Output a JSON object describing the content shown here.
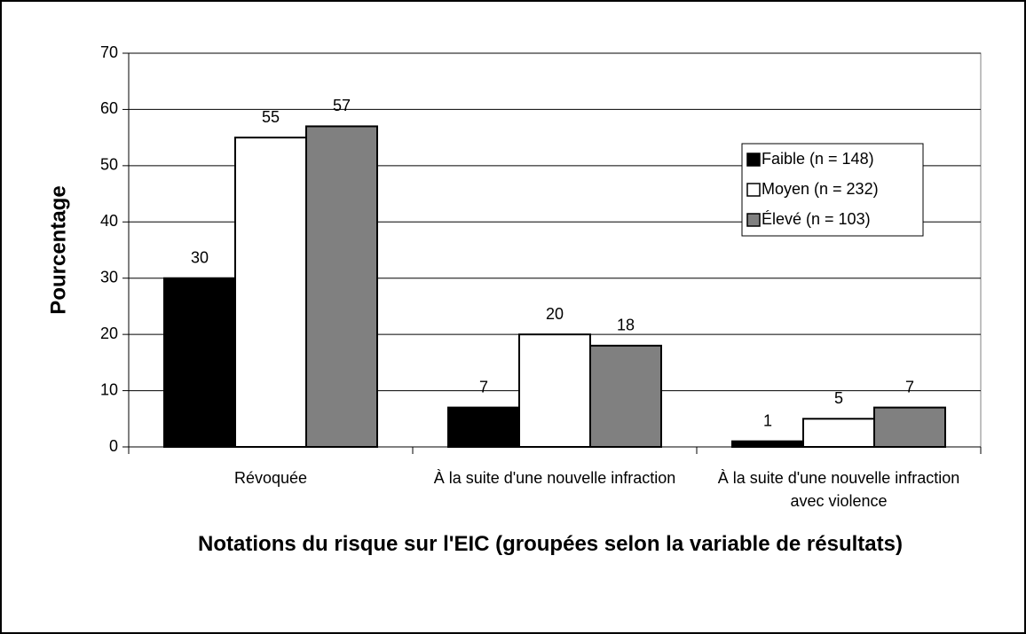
{
  "chart_data": {
    "type": "bar",
    "categories": [
      "Révoquée",
      "À la suite d'une nouvelle infraction",
      "À la suite d'une nouvelle infraction avec violence"
    ],
    "series": [
      {
        "name": "Faible (n = 148)",
        "color": "#000000",
        "values": [
          30,
          7,
          1
        ]
      },
      {
        "name": "Moyen (n = 232)",
        "color": "#ffffff",
        "values": [
          55,
          20,
          5
        ]
      },
      {
        "name": "Élevé (n = 103)",
        "color": "#808080",
        "values": [
          57,
          18,
          7
        ]
      }
    ],
    "ylabel": "Pourcentage",
    "xlabel": "Notations du risque sur l'EIC (groupées selon la variable de résultats)",
    "ylim": [
      0,
      70
    ],
    "yticks": [
      0,
      10,
      20,
      30,
      40,
      50,
      60,
      70
    ],
    "grid": true,
    "legend": "upper right"
  }
}
